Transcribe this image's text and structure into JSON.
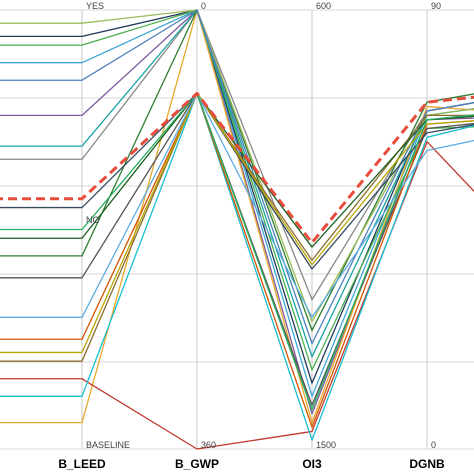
{
  "chart_data": {
    "type": "line",
    "subtype": "parallel-coordinates",
    "title": "",
    "grid": true,
    "axes": [
      {
        "name": "B_LEED",
        "top": "YES",
        "middle": "NO",
        "bottom": "BASELINE"
      },
      {
        "name": "B_GWP",
        "top": "0",
        "bottom": "360"
      },
      {
        "name": "OI3",
        "top": "600",
        "bottom": "1500"
      },
      {
        "name": "DGNB",
        "top": "90",
        "bottom": "0"
      },
      {
        "name": "",
        "top": "",
        "bottom": ""
      }
    ],
    "levels_note": "values are normalized positions on each axis: 1 = top label, 0 = bottom label",
    "series": [
      {
        "color": "#888888",
        "values": [
          0.66,
          1.0,
          0.34,
          0.77,
          0.82
        ]
      },
      {
        "color": "#3fa7d6",
        "values": [
          0.88,
          1.0,
          0.12,
          0.76,
          0.8
        ]
      },
      {
        "color": "#1f3b5c",
        "values": [
          0.94,
          1.0,
          0.15,
          0.77,
          0.82
        ]
      },
      {
        "color": "#7d5a9e",
        "values": [
          0.76,
          1.0,
          0.08,
          0.75,
          0.76
        ]
      },
      {
        "color": "#e8a92c",
        "values": [
          0.06,
          1.0,
          0.06,
          0.78,
          0.76
        ]
      },
      {
        "color": "#4caf50",
        "values": [
          0.92,
          1.0,
          0.18,
          0.73,
          0.74
        ]
      },
      {
        "color": "#1aa3a3",
        "values": [
          0.69,
          1.0,
          0.21,
          0.76,
          0.8
        ]
      },
      {
        "color": "#2e7d32",
        "values": [
          0.44,
          1.0,
          0.27,
          0.79,
          0.84
        ]
      },
      {
        "color": "#9bbb59",
        "values": [
          0.97,
          1.0,
          0.29,
          0.76,
          0.8
        ]
      },
      {
        "color": "#4f81bd",
        "values": [
          0.84,
          1.0,
          0.24,
          0.77,
          0.82
        ]
      },
      {
        "color": "#c0392b",
        "values": [
          0.16,
          0.0,
          0.04,
          0.7,
          0.4
        ]
      },
      {
        "color": "#17becf",
        "values": [
          0.12,
          0.81,
          0.02,
          0.71,
          0.78
        ]
      },
      {
        "color": "#8c6d31",
        "values": [
          0.2,
          0.81,
          0.43,
          0.76,
          0.76
        ]
      },
      {
        "color": "#1b5e20",
        "values": [
          0.48,
          0.81,
          0.46,
          0.75,
          0.77
        ]
      },
      {
        "color": "#555555",
        "values": [
          0.39,
          0.81,
          0.1,
          0.73,
          0.76
        ]
      },
      {
        "color": "#d35400",
        "values": [
          0.25,
          0.81,
          0.05,
          0.74,
          0.76
        ]
      },
      {
        "color": "#34495e",
        "values": [
          0.55,
          0.81,
          0.41,
          0.72,
          0.77
        ]
      },
      {
        "color": "#b8a600",
        "values": [
          0.22,
          0.81,
          0.42,
          0.74,
          0.76
        ]
      },
      {
        "color": "#5dade2",
        "values": [
          0.3,
          0.81,
          0.3,
          0.68,
          0.74
        ]
      },
      {
        "color": "#27ae60",
        "values": [
          0.5,
          0.81,
          0.09,
          0.75,
          0.78
        ]
      },
      {
        "color": "#e74c3c",
        "values": [
          0.57,
          0.81,
          0.47,
          0.79,
          0.82
        ],
        "dashed": true
      }
    ]
  }
}
